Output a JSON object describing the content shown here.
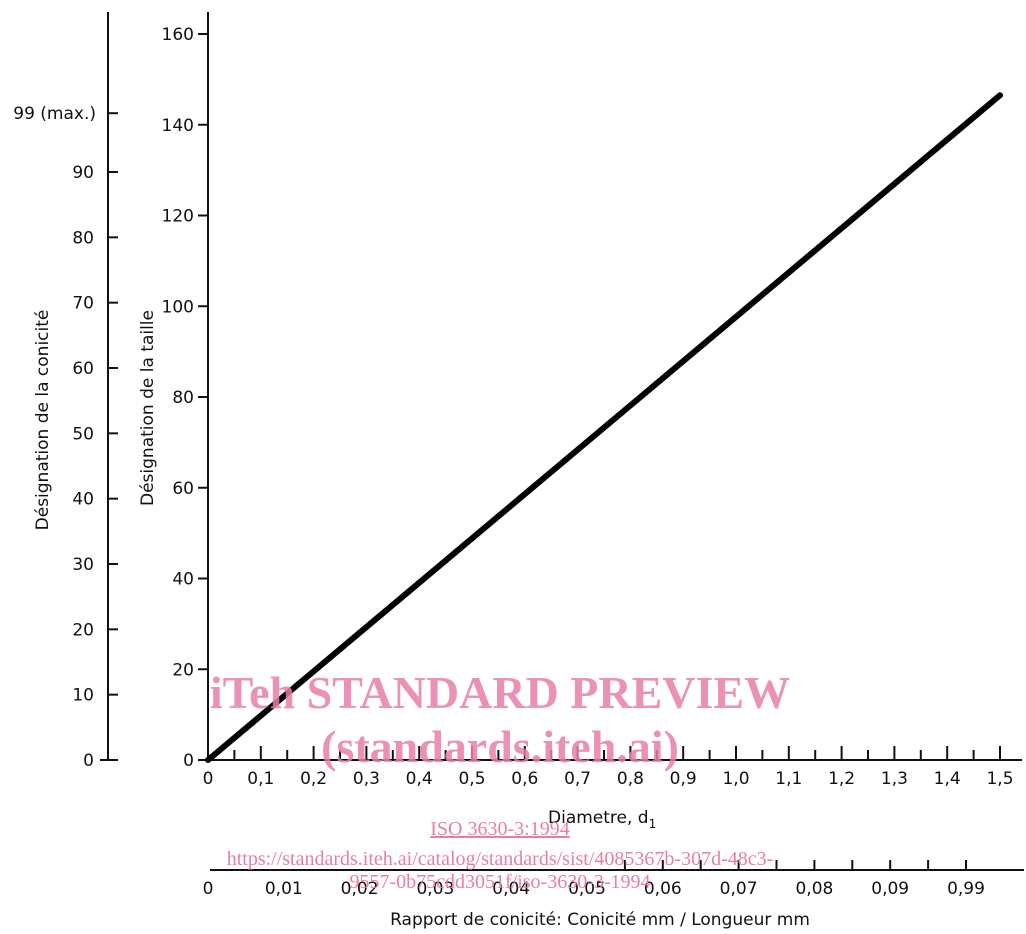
{
  "chart_data": {
    "type": "line",
    "x_axis": {
      "label": "Diametre, d",
      "label_subscript": "1",
      "range": [
        0,
        1.5
      ],
      "tick_labels": [
        "0",
        "0,1",
        "0,2",
        "0,3",
        "0,4",
        "0,5",
        "0,6",
        "0,7",
        "0,8",
        "0,9",
        "1,0",
        "1,1",
        "1,2",
        "1,3",
        "1,4",
        "1,5"
      ]
    },
    "y_axis": {
      "label": "Désignation de la taille",
      "range": [
        0,
        160
      ],
      "tick_labels": [
        "0",
        "20",
        "40",
        "60",
        "80",
        "100",
        "120",
        "140",
        "160"
      ]
    },
    "secondary_y_axis": {
      "label": "Désignation de la conicité",
      "range": [
        0,
        99
      ],
      "tick_labels": [
        "0",
        "10",
        "20",
        "30",
        "40",
        "50",
        "60",
        "70",
        "80",
        "90"
      ],
      "max_label": "99 (max.)"
    },
    "secondary_x_axis": {
      "label": "Rapport de conicité: Conicité mm / Longueur mm",
      "tick_labels": [
        "0",
        "0,01",
        "0,02",
        "0,03",
        "0,04",
        "0,05",
        "0,06",
        "0,07",
        "0,08",
        "0,09",
        "0,99"
      ]
    },
    "series": [
      {
        "x": [
          0,
          1.5
        ],
        "y": [
          0,
          146.5
        ]
      }
    ],
    "grid": false,
    "legend": "none"
  },
  "watermark": {
    "line1": "iTeh STANDARD PREVIEW",
    "line2": "(standards.iteh.ai)",
    "doc_id": "ISO 3630-3:1994",
    "url_line1": "https://standards.iteh.ai/catalog/standards/sist/4085367b-307d-48c3-",
    "url_line2": "9557-0b75cdd3051f/iso-3630-3-1994"
  }
}
